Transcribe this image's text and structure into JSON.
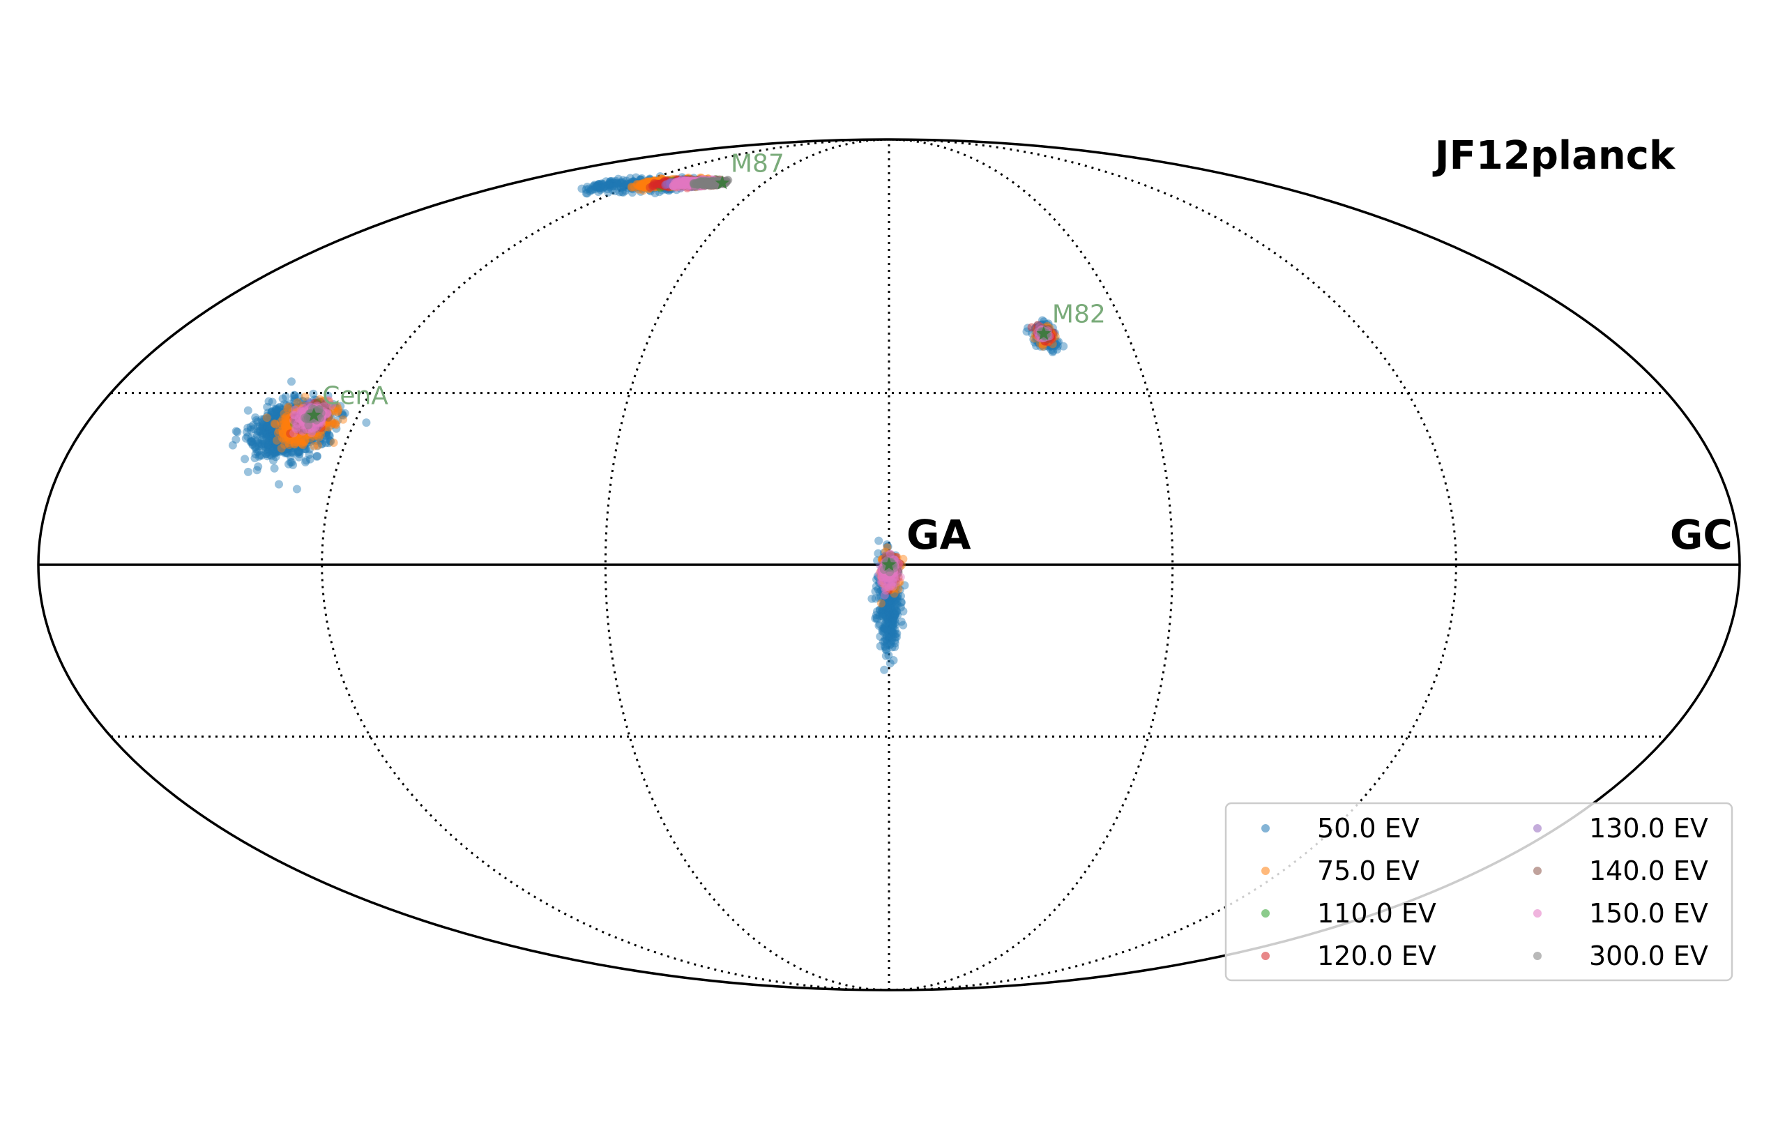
{
  "chart_data": {
    "type": "scatter",
    "projection": "mollweide",
    "title": "JF12planck",
    "region_labels": {
      "center": "GA",
      "right": "GC"
    },
    "grid": true,
    "legend_placement": "lower-right",
    "legend_columns": 2,
    "colors": {
      "50.0 EV": "#1f77b4",
      "75.0 EV": "#ff7f0e",
      "110.0 EV": "#2ca02c",
      "120.0 EV": "#d62728",
      "130.0 EV": "#9467bd",
      "140.0 EV": "#8c564b",
      "150.0 EV": "#e377c2",
      "300.0 EV": "#7f7f7f",
      "sources": "#3a7a3a",
      "source_labels": "#7aab7a"
    },
    "series": [
      {
        "name": "50.0 EV",
        "color": "#1f77b4"
      },
      {
        "name": "75.0 EV",
        "color": "#ff7f0e"
      },
      {
        "name": "110.0 EV",
        "color": "#2ca02c"
      },
      {
        "name": "120.0 EV",
        "color": "#d62728"
      },
      {
        "name": "130.0 EV",
        "color": "#9467bd"
      },
      {
        "name": "140.0 EV",
        "color": "#8c564b"
      },
      {
        "name": "150.0 EV",
        "color": "#e377c2"
      },
      {
        "name": "300.0 EV",
        "color": "#7f7f7f"
      }
    ],
    "sources": [
      {
        "name": "CenA",
        "lon": 130,
        "lat": 26
      },
      {
        "name": "M87",
        "lon": 80,
        "lat": 74
      },
      {
        "name": "M82",
        "lon": -39,
        "lat": 41
      },
      {
        "name": "GA",
        "lon": 0,
        "lat": 0
      }
    ],
    "clusters": [
      {
        "source": "CenA",
        "layers": [
          {
            "series": "50.0 EV",
            "dlon": 3.5,
            "dlat": -2.5,
            "rlon": 8,
            "rlat": 5
          },
          {
            "series": "75.0 EV",
            "dlon": 1.5,
            "dlat": -1.2,
            "rlon": 5.5,
            "rlat": 3.5
          },
          {
            "series": "110.0 EV",
            "dlon": 0.5,
            "dlat": -0.3,
            "rlon": 2.5,
            "rlat": 2
          },
          {
            "series": "120.0 EV",
            "dlon": 0.6,
            "dlat": -0.4,
            "rlon": 2.5,
            "rlat": 2
          },
          {
            "series": "130.0 EV",
            "dlon": 0.3,
            "dlat": -0.2,
            "rlon": 3,
            "rlat": 2
          },
          {
            "series": "140.0 EV",
            "dlon": 0.2,
            "dlat": -0.2,
            "rlon": 2.5,
            "rlat": 1.8
          },
          {
            "series": "150.0 EV",
            "dlon": 0.4,
            "dlat": -0.3,
            "rlon": 3.2,
            "rlat": 2.2
          },
          {
            "series": "300.0 EV",
            "dlon": 0,
            "dlat": 0,
            "rlon": 1.5,
            "rlat": 1.2
          }
        ]
      },
      {
        "source": "M82",
        "layers": [
          {
            "series": "50.0 EV",
            "dlon": 0,
            "dlat": -0.3,
            "rlon": 3,
            "rlat": 2.4
          },
          {
            "series": "75.0 EV",
            "dlon": -0.2,
            "dlat": -0.2,
            "rlon": 2.2,
            "rlat": 1.7
          },
          {
            "series": "110.0 EV",
            "dlon": 0,
            "dlat": 0,
            "rlon": 1.2,
            "rlat": 1
          },
          {
            "series": "120.0 EV",
            "dlon": -0.1,
            "dlat": -0.1,
            "rlon": 1.5,
            "rlat": 1.2
          },
          {
            "series": "130.0 EV",
            "dlon": 0,
            "dlat": 0,
            "rlon": 1.2,
            "rlat": 1
          },
          {
            "series": "140.0 EV",
            "dlon": -0.2,
            "dlat": 0,
            "rlon": 1.4,
            "rlat": 1.1
          },
          {
            "series": "150.0 EV",
            "dlon": -0.1,
            "dlat": 0,
            "rlon": 1.3,
            "rlat": 1
          },
          {
            "series": "300.0 EV",
            "dlon": 0,
            "dlat": 0,
            "rlon": 0.6,
            "rlat": 0.5
          }
        ]
      },
      {
        "source": "GA",
        "layers": [
          {
            "series": "50.0 EV",
            "dlon": 0,
            "dlat": -6.5,
            "rlon": 2.4,
            "rlat": 7.5
          },
          {
            "series": "75.0 EV",
            "dlon": 0,
            "dlat": -1.5,
            "rlon": 2,
            "rlat": 3
          },
          {
            "series": "110.0 EV",
            "dlon": 0,
            "dlat": -0.8,
            "rlon": 1.2,
            "rlat": 1.6
          },
          {
            "series": "120.0 EV",
            "dlon": 0,
            "dlat": -1,
            "rlon": 1.5,
            "rlat": 2
          },
          {
            "series": "130.0 EV",
            "dlon": 0,
            "dlat": -1,
            "rlon": 1.6,
            "rlat": 2
          },
          {
            "series": "140.0 EV",
            "dlon": 0,
            "dlat": -0.6,
            "rlon": 1.2,
            "rlat": 1.5
          },
          {
            "series": "150.0 EV",
            "dlon": 0,
            "dlat": -1.2,
            "rlon": 1.8,
            "rlat": 2.3
          },
          {
            "series": "300.0 EV",
            "dlon": 0,
            "dlat": 0,
            "rlon": 0.8,
            "rlat": 0.8
          }
        ]
      }
    ],
    "streak": {
      "source": "M87",
      "layers": [
        {
          "series": "50.0 EV",
          "lon_from": 138,
          "lon_to": 95,
          "lat_from": 73.5,
          "lat_to": 73.5,
          "spread": 0.9
        },
        {
          "series": "75.0 EV",
          "lon_from": 118,
          "lon_to": 88,
          "lat_from": 73.8,
          "lat_to": 74,
          "spread": 0.6
        },
        {
          "series": "110.0 EV",
          "lon_from": 108,
          "lon_to": 86,
          "lat_from": 73.9,
          "lat_to": 74,
          "spread": 0.4
        },
        {
          "series": "120.0 EV",
          "lon_from": 110,
          "lon_to": 88,
          "lat_from": 73.9,
          "lat_to": 74,
          "spread": 0.4
        },
        {
          "series": "130.0 EV",
          "lon_from": 104,
          "lon_to": 84,
          "lat_from": 74,
          "lat_to": 74,
          "spread": 0.4
        },
        {
          "series": "140.0 EV",
          "lon_from": 98,
          "lon_to": 82,
          "lat_from": 74,
          "lat_to": 74,
          "spread": 0.35
        },
        {
          "series": "150.0 EV",
          "lon_from": 102,
          "lon_to": 86,
          "lat_from": 74,
          "lat_to": 74,
          "spread": 0.4
        },
        {
          "series": "300.0 EV",
          "lon_from": 92,
          "lon_to": 80,
          "lat_from": 74,
          "lat_to": 74,
          "spread": 0.3
        }
      ]
    },
    "meridians_deg": [
      -120,
      -60,
      0,
      60,
      120
    ],
    "parallels_deg": [
      -30,
      30
    ],
    "equator_deg": 0
  }
}
